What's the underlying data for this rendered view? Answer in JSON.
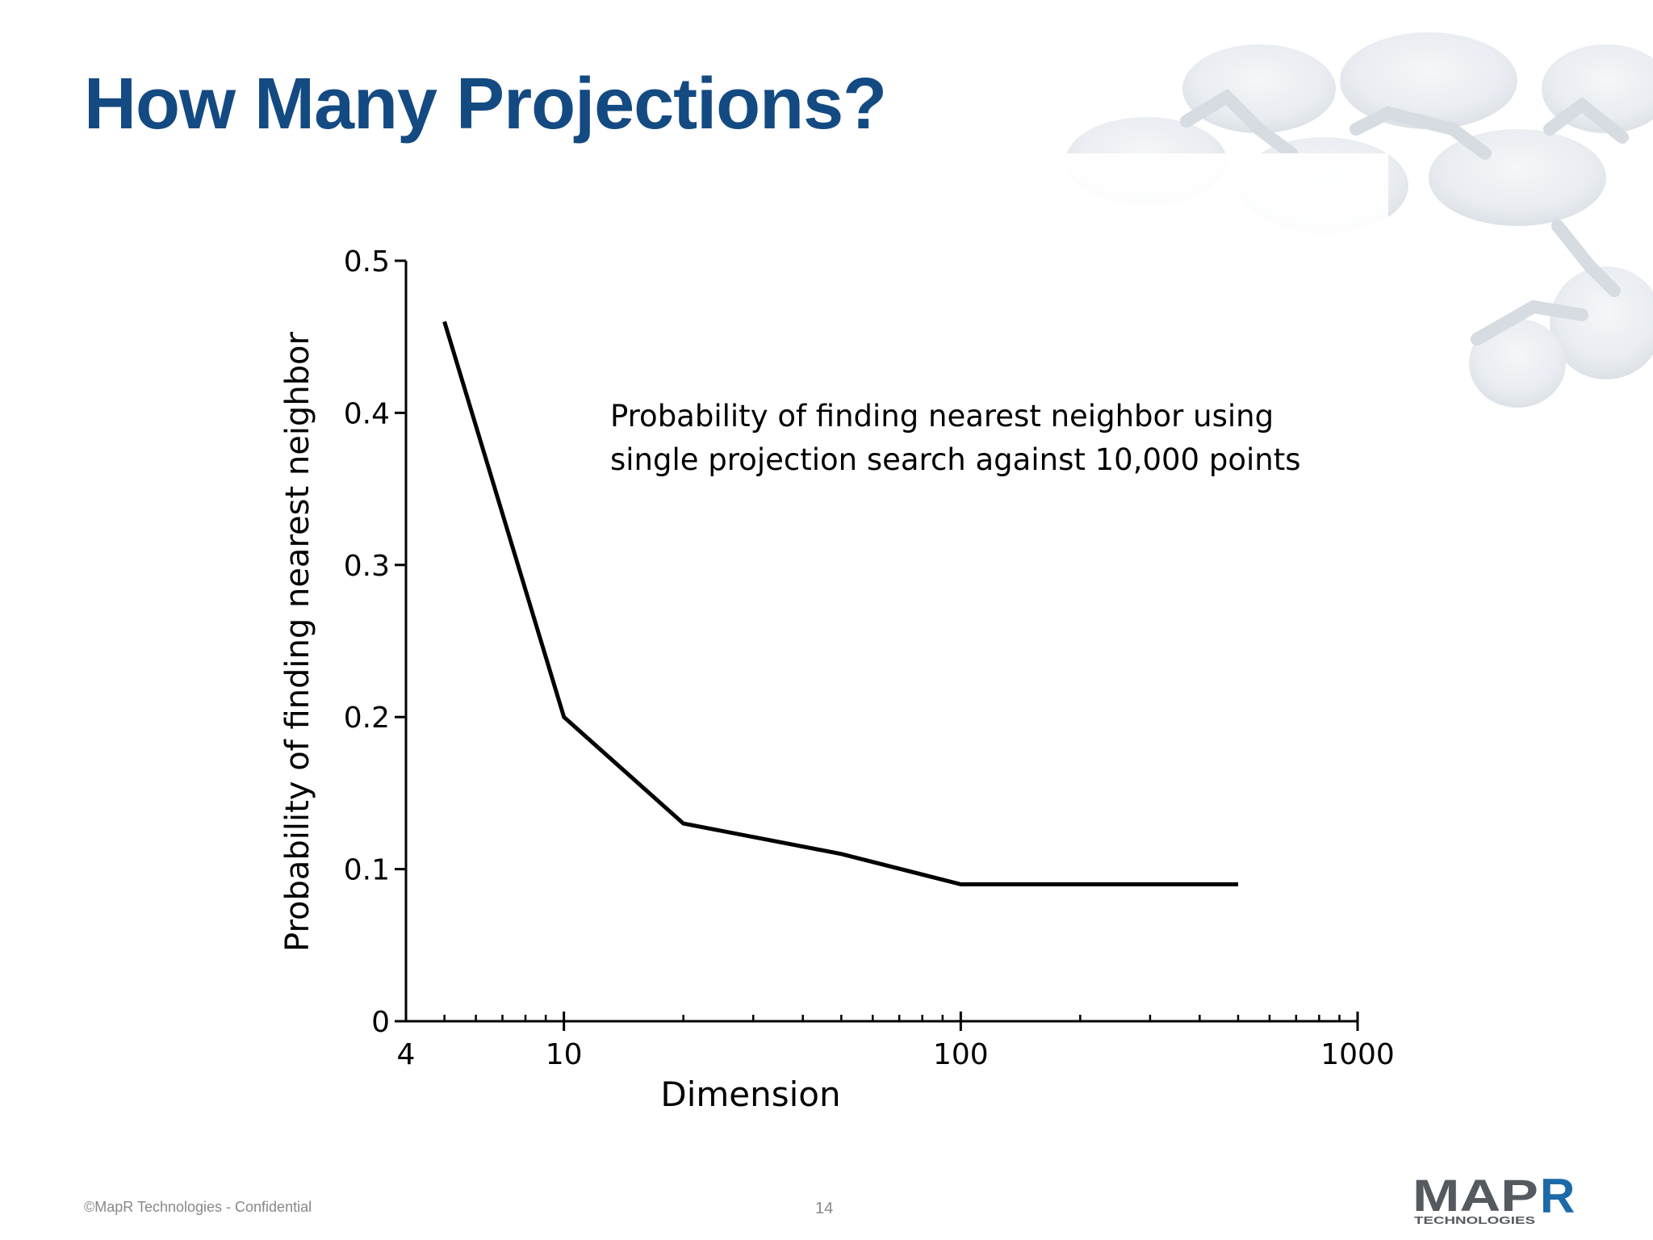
{
  "slide": {
    "title": "How Many Projections?",
    "footer": "©MapR Technologies - Confidential",
    "page_number": "14"
  },
  "logo": {
    "text": "MAPR",
    "subtext": "TECHNOLOGIES",
    "color_main": "#555a60",
    "color_accent": "#1c6aa8"
  },
  "colors": {
    "title": "#144a82",
    "line": "#000000",
    "axis": "#000000"
  },
  "chart_data": {
    "type": "line",
    "xlabel": "Dimension",
    "ylabel": "Probability of finding nearest neighbor",
    "x_scale": "log",
    "xlim": [
      4,
      1000
    ],
    "ylim": [
      0,
      0.5
    ],
    "x_ticks": [
      4,
      10,
      100,
      1000
    ],
    "y_ticks": [
      0,
      0.1,
      0.2,
      0.3,
      0.4,
      0.5
    ],
    "x_tick_labels": [
      "4",
      "10",
      "100",
      "1000"
    ],
    "y_tick_labels": [
      "0",
      "0.1",
      "0.2",
      "0.3",
      "0.4",
      "0.5"
    ],
    "annotation": [
      "Probability of finding nearest neighbor using",
      "single projection search against 10,000 points"
    ],
    "grid": false,
    "series": [
      {
        "x": [
          5,
          10,
          20,
          50,
          100,
          500
        ],
        "y": [
          0.46,
          0.2,
          0.13,
          0.11,
          0.09,
          0.09
        ]
      }
    ]
  }
}
